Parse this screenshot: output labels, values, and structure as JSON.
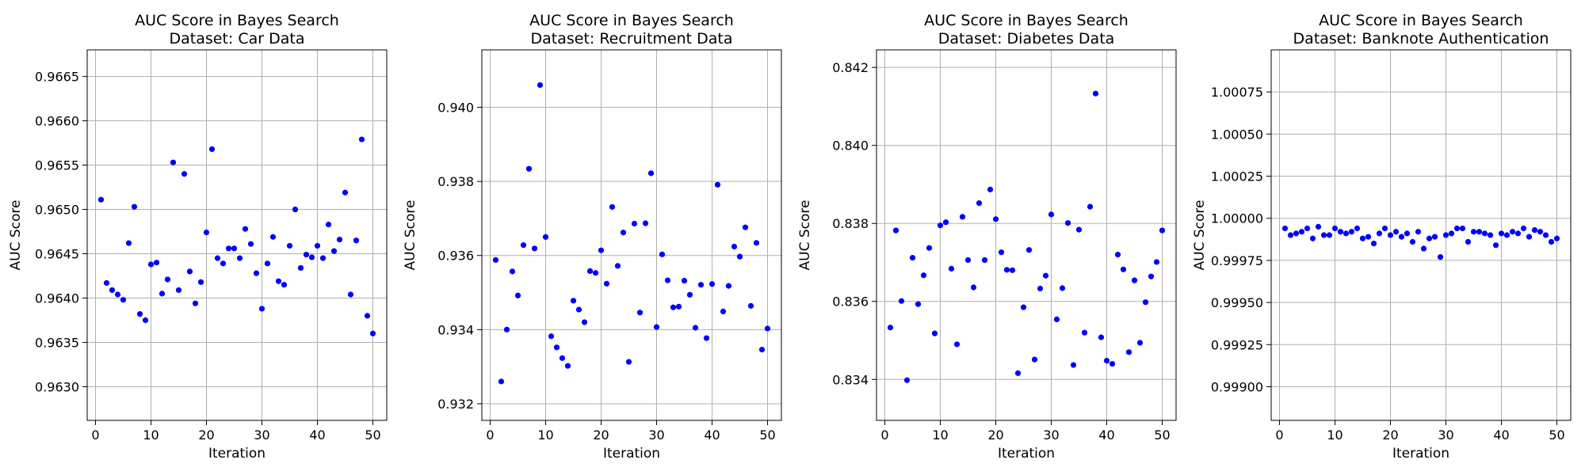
{
  "chart_data": [
    {
      "type": "scatter",
      "title": "AUC Score in Bayes Search",
      "subtitle": "Dataset: Car Data",
      "xlabel": "Iteration",
      "ylabel": "AUC Score",
      "xlim": [
        -1.5,
        52.5
      ],
      "ylim": [
        0.96262,
        0.9668
      ],
      "xticks": [
        0,
        10,
        20,
        30,
        40,
        50
      ],
      "xtick_labels": [
        "0",
        "10",
        "20",
        "30",
        "40",
        "50"
      ],
      "yticks": [
        0.963,
        0.9635,
        0.964,
        0.9645,
        0.965,
        0.9655,
        0.966,
        0.9665
      ],
      "ytick_labels": [
        "0.9630",
        "0.9635",
        "0.9640",
        "0.9645",
        "0.9650",
        "0.9655",
        "0.9660",
        "0.9665"
      ],
      "grid": true,
      "color": "#0000ff",
      "x": [
        1,
        2,
        3,
        4,
        5,
        6,
        7,
        8,
        9,
        10,
        11,
        12,
        13,
        14,
        15,
        16,
        17,
        18,
        19,
        20,
        21,
        22,
        23,
        24,
        25,
        26,
        27,
        28,
        29,
        30,
        31,
        32,
        33,
        34,
        35,
        36,
        37,
        38,
        39,
        40,
        41,
        42,
        43,
        44,
        45,
        46,
        47,
        48,
        49,
        50
      ],
      "y": [
        0.96511,
        0.96417,
        0.96409,
        0.96404,
        0.96398,
        0.96462,
        0.96503,
        0.96382,
        0.96375,
        0.96438,
        0.9644,
        0.96405,
        0.96421,
        0.96553,
        0.96409,
        0.9654,
        0.9643,
        0.96394,
        0.96418,
        0.96474,
        0.96568,
        0.96445,
        0.96439,
        0.96456,
        0.96456,
        0.96445,
        0.96478,
        0.96461,
        0.96428,
        0.96388,
        0.96439,
        0.96469,
        0.96419,
        0.96415,
        0.96459,
        0.965,
        0.96434,
        0.96449,
        0.96446,
        0.96459,
        0.96445,
        0.96483,
        0.96453,
        0.96466,
        0.96519,
        0.96404,
        0.96465,
        0.96579,
        0.9638,
        0.9636
      ]
    },
    {
      "type": "scatter",
      "title": "AUC Score in Bayes Search",
      "subtitle": "Dataset: Recruitment Data",
      "xlabel": "Iteration",
      "ylabel": "AUC Score",
      "xlim": [
        -1.5,
        52.5
      ],
      "ylim": [
        0.93155,
        0.94155
      ],
      "xticks": [
        0,
        10,
        20,
        30,
        40,
        50
      ],
      "xtick_labels": [
        "0",
        "10",
        "20",
        "30",
        "40",
        "50"
      ],
      "yticks": [
        0.932,
        0.934,
        0.936,
        0.938,
        0.94
      ],
      "ytick_labels": [
        "0.932",
        "0.934",
        "0.936",
        "0.938",
        "0.940"
      ],
      "grid": true,
      "color": "#0000ff",
      "x": [
        1,
        2,
        3,
        4,
        5,
        6,
        7,
        8,
        9,
        10,
        11,
        12,
        13,
        14,
        15,
        16,
        17,
        18,
        19,
        20,
        21,
        22,
        23,
        24,
        25,
        26,
        27,
        28,
        29,
        30,
        31,
        32,
        33,
        34,
        35,
        36,
        37,
        38,
        39,
        40,
        41,
        42,
        43,
        44,
        45,
        46,
        47,
        48,
        49,
        50
      ],
      "y": [
        0.93588,
        0.9326,
        0.934,
        0.93557,
        0.93492,
        0.93628,
        0.93834,
        0.93619,
        0.9406,
        0.9365,
        0.93382,
        0.93352,
        0.93323,
        0.93302,
        0.93478,
        0.93454,
        0.9342,
        0.93558,
        0.93553,
        0.93614,
        0.93524,
        0.93731,
        0.93572,
        0.93662,
        0.93313,
        0.93686,
        0.93446,
        0.93687,
        0.93822,
        0.93407,
        0.93603,
        0.93533,
        0.9346,
        0.93462,
        0.93532,
        0.93494,
        0.93405,
        0.93521,
        0.93377,
        0.93523,
        0.93791,
        0.93449,
        0.93518,
        0.93624,
        0.93597,
        0.93676,
        0.93464,
        0.93634,
        0.93346,
        0.93403
      ]
    },
    {
      "type": "scatter",
      "title": "AUC Score in Bayes Search",
      "subtitle": "Dataset: Diabetes Data",
      "xlabel": "Iteration",
      "ylabel": "AUC Score",
      "xlim": [
        -1.5,
        52.5
      ],
      "ylim": [
        0.83295,
        0.84245
      ],
      "xticks": [
        0,
        10,
        20,
        30,
        40,
        50
      ],
      "xtick_labels": [
        "0",
        "10",
        "20",
        "30",
        "40",
        "50"
      ],
      "yticks": [
        0.834,
        0.836,
        0.838,
        0.84,
        0.842
      ],
      "ytick_labels": [
        "0.834",
        "0.836",
        "0.838",
        "0.840",
        "0.842"
      ],
      "grid": true,
      "color": "#0000ff",
      "x": [
        1,
        2,
        3,
        4,
        5,
        6,
        7,
        8,
        9,
        10,
        11,
        12,
        13,
        14,
        15,
        16,
        17,
        18,
        19,
        20,
        21,
        22,
        23,
        24,
        25,
        26,
        27,
        28,
        29,
        30,
        31,
        32,
        33,
        34,
        35,
        36,
        37,
        38,
        39,
        40,
        41,
        42,
        43,
        44,
        45,
        46,
        47,
        48,
        49,
        50
      ],
      "y": [
        0.83533,
        0.83782,
        0.83601,
        0.83398,
        0.83712,
        0.83593,
        0.83667,
        0.83737,
        0.83518,
        0.83795,
        0.83803,
        0.83684,
        0.8349,
        0.83817,
        0.83706,
        0.83636,
        0.83852,
        0.83706,
        0.83887,
        0.83811,
        0.83726,
        0.83681,
        0.8368,
        0.83416,
        0.83585,
        0.83732,
        0.83451,
        0.83633,
        0.83666,
        0.83823,
        0.83554,
        0.83634,
        0.83801,
        0.83437,
        0.83784,
        0.8352,
        0.83843,
        0.84133,
        0.83508,
        0.83448,
        0.8344,
        0.8372,
        0.83682,
        0.8347,
        0.83654,
        0.83494,
        0.83598,
        0.83664,
        0.83701,
        0.83782
      ]
    },
    {
      "type": "scatter",
      "title": "AUC Score in Bayes Search",
      "subtitle": "Dataset: Banknote Authentication",
      "xlabel": "Iteration",
      "ylabel": "AUC Score",
      "xlim": [
        -1.5,
        52.5
      ],
      "ylim": [
        0.9988,
        1.001
      ],
      "xticks": [
        0,
        10,
        20,
        30,
        40,
        50
      ],
      "xtick_labels": [
        "0",
        "10",
        "20",
        "30",
        "40",
        "50"
      ],
      "yticks": [
        0.999,
        0.99925,
        0.9995,
        0.99975,
        1.0,
        1.00025,
        1.0005,
        1.00075
      ],
      "ytick_labels": [
        "0.99900",
        "0.99925",
        "0.99950",
        "0.99975",
        "1.00000",
        "1.00025",
        "1.00050",
        "1.00075"
      ],
      "grid": true,
      "color": "#0000ff",
      "x": [
        1,
        2,
        3,
        4,
        5,
        6,
        7,
        8,
        9,
        10,
        11,
        12,
        13,
        14,
        15,
        16,
        17,
        18,
        19,
        20,
        21,
        22,
        23,
        24,
        25,
        26,
        27,
        28,
        29,
        30,
        31,
        32,
        33,
        34,
        35,
        36,
        37,
        38,
        39,
        40,
        41,
        42,
        43,
        44,
        45,
        46,
        47,
        48,
        49,
        50
      ],
      "y": [
        0.99994,
        0.9999,
        0.99991,
        0.99992,
        0.99994,
        0.99988,
        0.99995,
        0.9999,
        0.9999,
        0.99994,
        0.99992,
        0.99991,
        0.99992,
        0.99994,
        0.99988,
        0.99989,
        0.99985,
        0.99991,
        0.99994,
        0.9999,
        0.99992,
        0.99989,
        0.99991,
        0.99986,
        0.99992,
        0.99982,
        0.99988,
        0.99989,
        0.99977,
        0.9999,
        0.99991,
        0.99994,
        0.99994,
        0.99986,
        0.99992,
        0.99992,
        0.99991,
        0.9999,
        0.99984,
        0.99991,
        0.9999,
        0.99992,
        0.99991,
        0.99994,
        0.99989,
        0.99993,
        0.99992,
        0.9999,
        0.99986,
        0.99988
      ]
    }
  ]
}
